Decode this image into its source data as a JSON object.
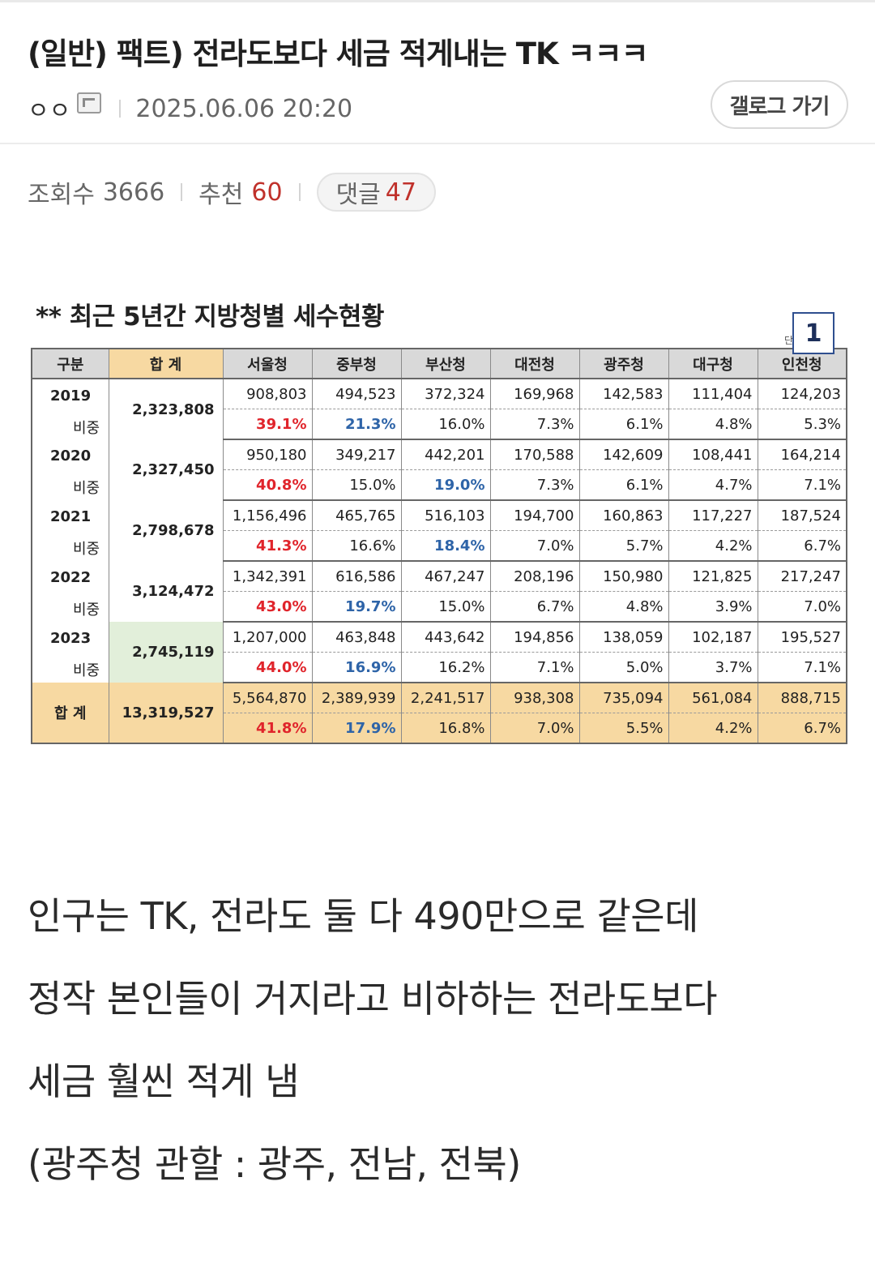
{
  "post": {
    "title": "(일반) 팩트) 전라도보다 세금 적게내는 TK ㅋㅋㅋ",
    "author": "ㅇㅇ",
    "date": "2025.06.06 20:20",
    "gallery_button": "갤로그 가기"
  },
  "stats": {
    "views_label": "조회수",
    "views": "3666",
    "recommend_label": "추천",
    "recommend": "60",
    "comments_label": "댓글",
    "comments": "47"
  },
  "table_image": {
    "caption": "** 최근 5년간 지방청별 세수현황",
    "unit_note": "단위:%",
    "page_badge": "1",
    "headers": [
      "구분",
      "합 계",
      "서울청",
      "중부청",
      "부산청",
      "대전청",
      "광주청",
      "대구청",
      "인천청"
    ],
    "ratio_label": "비중",
    "rows": [
      {
        "year": "2019",
        "sum": "2,323,808",
        "values": [
          "908,803",
          "494,523",
          "372,324",
          "169,968",
          "142,583",
          "111,404",
          "124,203"
        ],
        "ratios": [
          "39.1%",
          "21.3%",
          "16.0%",
          "7.3%",
          "6.1%",
          "4.8%",
          "5.3%"
        ]
      },
      {
        "year": "2020",
        "sum": "2,327,450",
        "values": [
          "950,180",
          "349,217",
          "442,201",
          "170,588",
          "142,609",
          "108,441",
          "164,214"
        ],
        "ratios": [
          "40.8%",
          "15.0%",
          "19.0%",
          "7.3%",
          "6.1%",
          "4.7%",
          "7.1%"
        ]
      },
      {
        "year": "2021",
        "sum": "2,798,678",
        "values": [
          "1,156,496",
          "465,765",
          "516,103",
          "194,700",
          "160,863",
          "117,227",
          "187,524"
        ],
        "ratios": [
          "41.3%",
          "16.6%",
          "18.4%",
          "7.0%",
          "5.7%",
          "4.2%",
          "6.7%"
        ]
      },
      {
        "year": "2022",
        "sum": "3,124,472",
        "values": [
          "1,342,391",
          "616,586",
          "467,247",
          "208,196",
          "150,980",
          "121,825",
          "217,247"
        ],
        "ratios": [
          "43.0%",
          "19.7%",
          "15.0%",
          "6.7%",
          "4.8%",
          "3.9%",
          "7.0%"
        ]
      },
      {
        "year": "2023",
        "sum": "2,745,119",
        "values": [
          "1,207,000",
          "463,848",
          "443,642",
          "194,856",
          "138,059",
          "102,187",
          "195,527"
        ],
        "ratios": [
          "44.0%",
          "16.9%",
          "16.2%",
          "7.1%",
          "5.0%",
          "3.7%",
          "7.1%"
        ]
      }
    ],
    "total": {
      "label": "합 계",
      "sum": "13,319,527",
      "values": [
        "5,564,870",
        "2,389,939",
        "2,241,517",
        "938,308",
        "735,094",
        "561,084",
        "888,715"
      ],
      "ratios": [
        "41.8%",
        "17.9%",
        "16.8%",
        "7.0%",
        "5.5%",
        "4.2%",
        "6.7%"
      ]
    },
    "highlight_colors": {
      "red": "#e0242b",
      "blue": "#2e64a8",
      "sum_header": "#f7d9a2",
      "latest_sum": "#e2efda"
    }
  },
  "body": {
    "lines": [
      "인구는 TK, 전라도 둘 다 490만으로 같은데",
      "정작 본인들이 거지라고 비하하는 전라도보다",
      "세금 훨씬 적게 냄",
      "(광주청 관할 : 광주, 전남, 전북)"
    ]
  }
}
